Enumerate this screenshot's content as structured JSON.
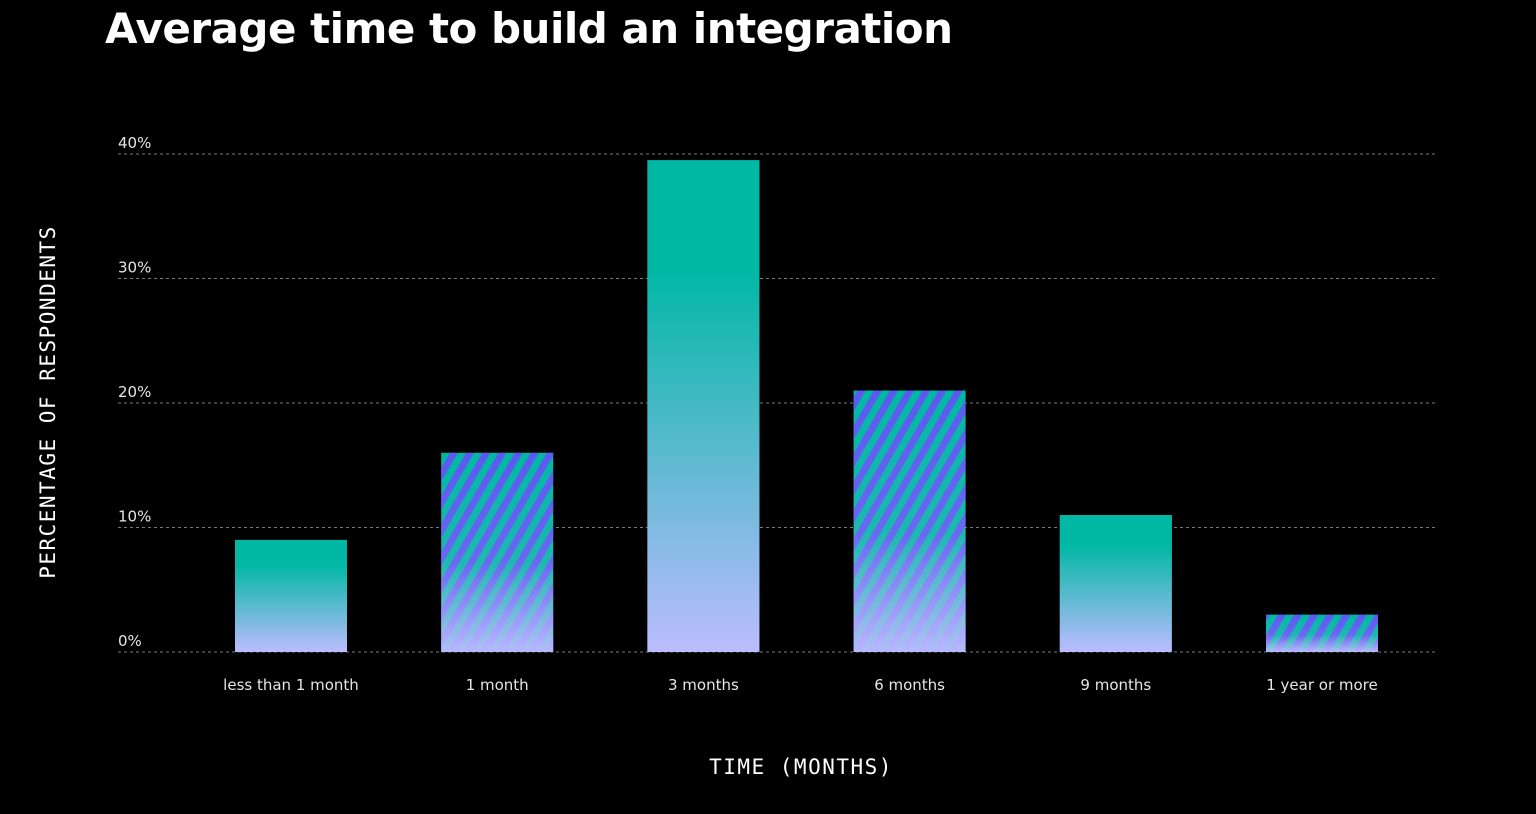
{
  "chart_data": {
    "type": "bar",
    "title": "Average time to build an integration",
    "xlabel": "TIME (MONTHS)",
    "ylabel": "PERCENTAGE OF RESPONDENTS",
    "categories": [
      "less than 1 month",
      "1 month",
      "3 months",
      "6 months",
      "9 months",
      "1 year or more"
    ],
    "values": [
      9,
      16,
      39.5,
      21,
      11,
      3
    ],
    "styles": [
      "solid",
      "striped",
      "solid",
      "striped",
      "solid",
      "striped"
    ],
    "ylim": [
      0,
      40
    ],
    "yticks": [
      0,
      10,
      20,
      30,
      40
    ],
    "ytick_labels": [
      "0%",
      "10%",
      "20%",
      "30%",
      "40%"
    ],
    "grid": true,
    "legend": "none",
    "colors": {
      "background": "#000000",
      "gradient_top": "#00b8a4",
      "gradient_bottom": "#bcbcff",
      "stripe": "#5a5af0",
      "grid": "#7a7a7a"
    }
  }
}
